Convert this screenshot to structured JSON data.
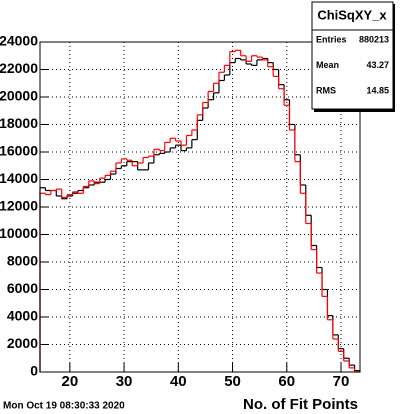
{
  "chart_data": {
    "type": "histogram",
    "xlabel": "No. of Fit Points",
    "footer": "Mon Oct 19 08:30:33 2020",
    "bins": [
      14.5,
      15.5,
      16.5,
      17.5,
      18.5,
      19.5,
      20.5,
      21.5,
      22.5,
      23.5,
      24.5,
      25.5,
      26.5,
      27.5,
      28.5,
      29.5,
      30.5,
      31.5,
      32.5,
      33.5,
      34.5,
      35.5,
      36.5,
      37.5,
      38.5,
      39.5,
      40.5,
      41.5,
      42.5,
      43.5,
      44.5,
      45.5,
      46.5,
      47.5,
      48.5,
      49.5,
      50.5,
      51.5,
      52.5,
      53.5,
      54.5,
      55.5,
      56.5,
      57.5,
      58.5,
      59.5,
      60.5,
      61.5,
      62.5,
      63.5,
      64.5,
      65.5,
      66.5,
      67.5,
      68.5,
      69.5,
      70.5,
      71.5,
      72.5,
      73.5
    ],
    "series": [
      {
        "color": "#000000",
        "values": [
          13400,
          13200,
          13200,
          12800,
          12600,
          12800,
          13000,
          13200,
          13400,
          13600,
          13800,
          13800,
          14000,
          14400,
          14800,
          15000,
          15300,
          15300,
          14700,
          14700,
          15200,
          15800,
          15900,
          16000,
          16300,
          16500,
          16100,
          16300,
          16900,
          18300,
          19200,
          19800,
          20300,
          21200,
          21600,
          22500,
          22800,
          22700,
          22400,
          22300,
          22700,
          22800,
          22500,
          22000,
          20900,
          19800,
          18000,
          15800,
          13600,
          11400,
          9200,
          7600,
          6000,
          4100,
          2700,
          1700,
          1000,
          500,
          100
        ]
      },
      {
        "color": "#ff0000",
        "values": [
          13000,
          12900,
          13200,
          13300,
          12700,
          12900,
          13100,
          13000,
          13500,
          13900,
          13700,
          14100,
          14300,
          14600,
          15200,
          15500,
          15400,
          15000,
          15200,
          15600,
          15700,
          16200,
          16100,
          16700,
          17000,
          16800,
          16500,
          17200,
          17600,
          18700,
          19600,
          20400,
          21000,
          21800,
          22300,
          23300,
          23400,
          23000,
          22600,
          23000,
          22900,
          22700,
          22200,
          21500,
          20600,
          19400,
          17600,
          15300,
          13000,
          10800,
          8900,
          7200,
          5500,
          3800,
          2400,
          1500,
          800,
          300,
          0
        ]
      }
    ],
    "xlim": [
      14.5,
      73.5
    ],
    "ylim": [
      0,
      24000
    ],
    "xticks": [
      20,
      30,
      40,
      50,
      60,
      70
    ],
    "yticks": [
      0,
      2000,
      4000,
      6000,
      8000,
      10000,
      12000,
      14000,
      16000,
      18000,
      20000,
      22000,
      24000
    ],
    "grid": true,
    "stats": {
      "title": "ChiSqXY_x",
      "rows": [
        {
          "label": "Entries",
          "value": 880213
        },
        {
          "label": "Mean",
          "value": 43.27
        },
        {
          "label": "RMS",
          "value": 14.85
        }
      ]
    }
  }
}
